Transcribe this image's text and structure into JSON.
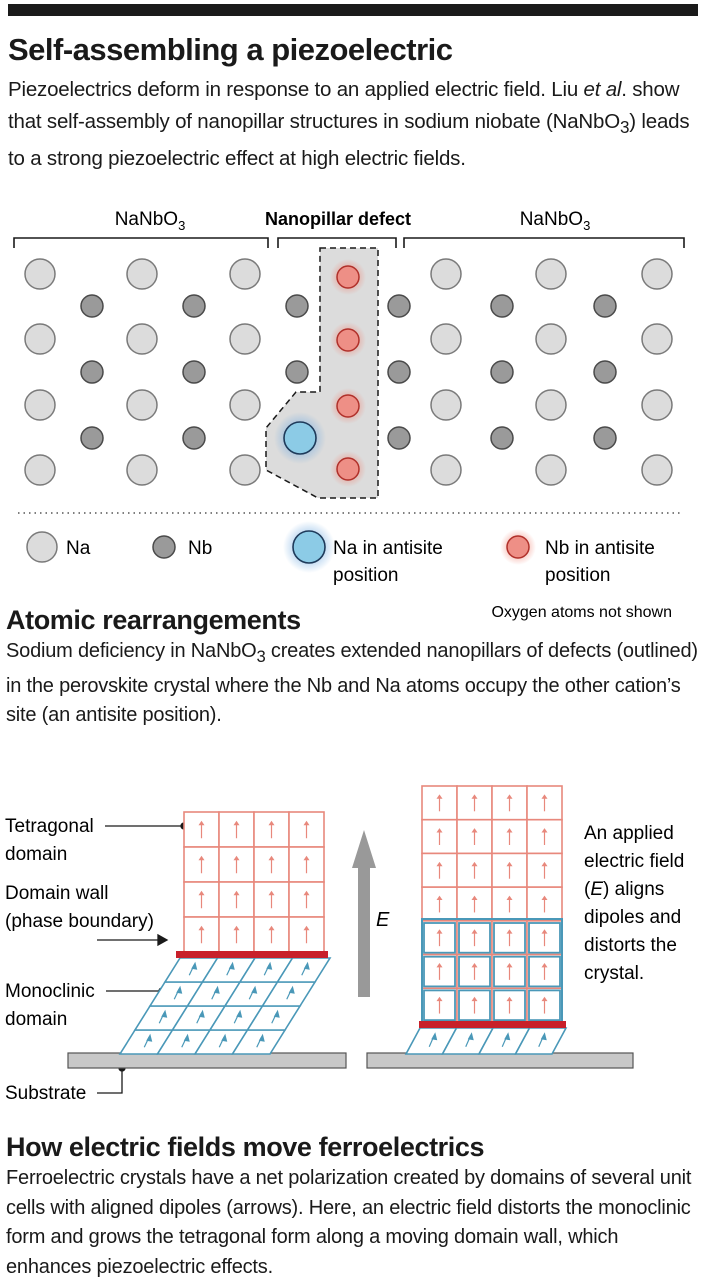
{
  "header": {
    "title": "Self-assembling a piezoelectric",
    "intro_a": "Piezoelectrics deform in response to an applied electric field. Liu ",
    "intro_em": "et al",
    "intro_b": ". show that self-assembly of nanopillar structures in sodium niobate (NaNbO",
    "intro_sub": "3",
    "intro_c": ") leads to a strong piezoelectric effect at high electric fields."
  },
  "lattice": {
    "left_label": "NaNbO",
    "left_label_sub": "3",
    "middle_label": "Nanopillar defect",
    "right_label": "NaNbO",
    "right_label_sub": "3",
    "legend": {
      "na": "Na",
      "nb": "Nb",
      "na_antisite_1": "Na in antisite",
      "na_antisite_2": "position",
      "nb_antisite_1": "Nb in antisite",
      "nb_antisite_2": "position"
    },
    "note": "Oxygen atoms not shown",
    "colors": {
      "na": "#dcdcdc",
      "nb": "#9a9a9a",
      "na_antisite": "#8ccbe6",
      "nb_antisite": "#ee8f86",
      "pillar": "#dddddd"
    }
  },
  "section1": {
    "heading": "Atomic rearrangements",
    "para_a": "Sodium deficiency in NaNbO",
    "para_sub": "3",
    "para_b": " creates extended nanopillars of defects (outlined) in the perovskite crystal where the Nb and Na atoms occupy the other cation’s site (an antisite position)."
  },
  "domains": {
    "tetragonal_1": "Tetragonal",
    "tetragonal_2": "domain",
    "wall_1": "Domain wall",
    "wall_2": "(phase boundary)",
    "mono_1": "Monoclinic",
    "mono_2": "domain",
    "substrate": "Substrate",
    "field_label": "E",
    "applied_1": "An applied",
    "applied_2": "electric field",
    "applied_3a": "(",
    "applied_3e": "E",
    "applied_3b": ") aligns",
    "applied_4": "dipoles and",
    "applied_5": "distorts the",
    "applied_6": "crystal.",
    "colors": {
      "tetragonal": "#e8887c",
      "monoclinic": "#4a98b8",
      "wall": "#c8202a",
      "substrate": "#c8c8c8",
      "arrow": "#999999"
    }
  },
  "section2": {
    "heading": "How electric fields move ferroelectrics",
    "para": "Ferroelectric crystals have a net polarization created by domains of several unit cells with aligned dipoles (arrows). Here, an electric field distorts the monoclinic form and grows the  tetragonal form along a moving domain wall, which enhances piezoelectric effects."
  }
}
